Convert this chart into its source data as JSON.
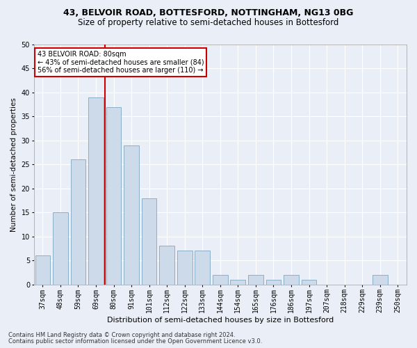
{
  "title1": "43, BELVOIR ROAD, BOTTESFORD, NOTTINGHAM, NG13 0BG",
  "title2": "Size of property relative to semi-detached houses in Bottesford",
  "xlabel": "Distribution of semi-detached houses by size in Bottesford",
  "ylabel": "Number of semi-detached properties",
  "categories": [
    "37sqm",
    "48sqm",
    "59sqm",
    "69sqm",
    "80sqm",
    "91sqm",
    "101sqm",
    "112sqm",
    "122sqm",
    "133sqm",
    "144sqm",
    "154sqm",
    "165sqm",
    "176sqm",
    "186sqm",
    "197sqm",
    "207sqm",
    "218sqm",
    "229sqm",
    "239sqm",
    "250sqm"
  ],
  "values": [
    6,
    15,
    26,
    39,
    37,
    29,
    18,
    8,
    7,
    7,
    2,
    1,
    2,
    1,
    2,
    1,
    0,
    0,
    0,
    2,
    0
  ],
  "bar_color": "#ccdaea",
  "bar_edge_color": "#8aafc8",
  "red_line_index": 3,
  "annotation_title": "43 BELVOIR ROAD: 80sqm",
  "annotation_line1": "← 43% of semi-detached houses are smaller (84)",
  "annotation_line2": "56% of semi-detached houses are larger (110) →",
  "annotation_box_color": "#ffffff",
  "annotation_box_edge": "#cc0000",
  "red_line_color": "#cc0000",
  "ylim": [
    0,
    50
  ],
  "yticks": [
    0,
    5,
    10,
    15,
    20,
    25,
    30,
    35,
    40,
    45,
    50
  ],
  "footnote1": "Contains HM Land Registry data © Crown copyright and database right 2024.",
  "footnote2": "Contains public sector information licensed under the Open Government Licence v3.0.",
  "bg_color": "#eaeff7",
  "plot_bg_color": "#eaeff7",
  "title1_fontsize": 9,
  "title2_fontsize": 8.5,
  "xlabel_fontsize": 8,
  "ylabel_fontsize": 7.5,
  "tick_fontsize": 7,
  "annot_fontsize": 7
}
